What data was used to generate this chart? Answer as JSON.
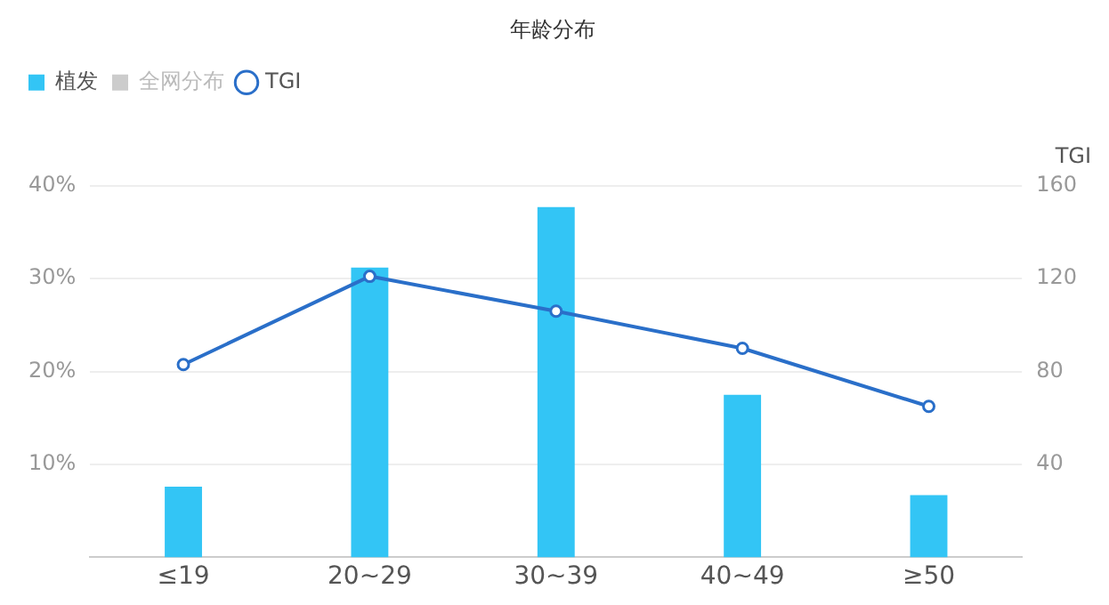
{
  "chart_data": {
    "type": "bar",
    "title": "年龄分布",
    "categories": [
      "≤19",
      "20~29",
      "30~39",
      "40~49",
      "≥50"
    ],
    "series": [
      {
        "name": "植发",
        "color": "#33c5f5",
        "values": [
          7.6,
          31.2,
          37.7,
          17.5,
          6.7
        ]
      },
      {
        "name": "全网分布",
        "color": "#cccccc",
        "values": [
          null,
          null,
          null,
          null,
          null
        ]
      },
      {
        "name": "TGI",
        "type": "line",
        "axis": "y2",
        "color": "#2a6fc9",
        "values": [
          83,
          121,
          106,
          90,
          65
        ]
      }
    ],
    "ylim": [
      0,
      40
    ],
    "yticks": [
      {
        "value": 10,
        "label": "10%"
      },
      {
        "value": 20,
        "label": "20%"
      },
      {
        "value": 30,
        "label": "30%"
      },
      {
        "value": 40,
        "label": "40%"
      }
    ],
    "y2label": "TGI",
    "y2lim": [
      0,
      160
    ],
    "y2ticks": [
      40,
      80,
      120,
      160
    ],
    "grid": "y",
    "legend": "top left",
    "marker": "circle"
  }
}
